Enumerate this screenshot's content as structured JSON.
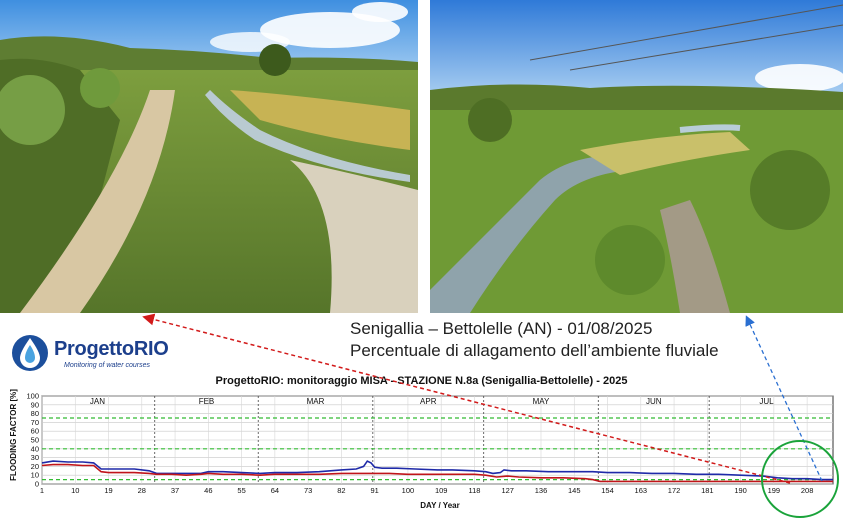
{
  "caption": {
    "line1": "Senigallia – Bettolelle (AN) - 01/08/2025",
    "line2": "Percentuale di allagamento dell’ambiente fluviale"
  },
  "logo": {
    "name": "ProgettoRIO",
    "tagline": "Monitoring of water courses"
  },
  "colors": {
    "blue_series": "#1f2aa8",
    "red_series": "#c0151a",
    "threshold_lines": "#33bb33",
    "highlight_circle": "#1aa33a",
    "arrow_red": "#d21a1a",
    "arrow_blue": "#2a6fd1"
  },
  "chart_data": {
    "type": "line",
    "title": "ProgettoRIO: monitoraggio MISA - STAZIONE N.8a (Senigallia-Bettolelle) - 2025",
    "xlabel": "DAY / Year",
    "ylabel": "FLOODING FACTOR [%]",
    "xlim": [
      1,
      215
    ],
    "ylim": [
      0,
      100
    ],
    "x_ticks": [
      1,
      10,
      19,
      28,
      37,
      46,
      55,
      64,
      73,
      82,
      91,
      100,
      109,
      118,
      127,
      136,
      145,
      154,
      163,
      172,
      181,
      190,
      199,
      208
    ],
    "y_ticks": [
      0,
      10,
      20,
      30,
      40,
      50,
      60,
      70,
      80,
      90,
      100
    ],
    "months": [
      {
        "label": "JAN",
        "start": 1,
        "end": 31
      },
      {
        "label": "FEB",
        "start": 32,
        "end": 59
      },
      {
        "label": "MAR",
        "start": 60,
        "end": 90
      },
      {
        "label": "APR",
        "start": 91,
        "end": 120
      },
      {
        "label": "MAY",
        "start": 121,
        "end": 151
      },
      {
        "label": "JUN",
        "start": 152,
        "end": 181
      },
      {
        "label": "JUL",
        "start": 182,
        "end": 212
      }
    ],
    "thresholds": [
      5,
      40,
      75
    ],
    "series": [
      {
        "color": "#1f2aa8",
        "x": [
          1,
          4,
          8,
          12,
          15,
          17,
          19,
          22,
          26,
          30,
          32,
          36,
          40,
          44,
          46,
          50,
          55,
          60,
          64,
          70,
          76,
          82,
          86,
          88,
          89,
          90,
          91,
          93,
          97,
          102,
          108,
          112,
          118,
          121,
          123,
          125,
          126,
          128,
          132,
          138,
          145,
          150,
          154,
          160,
          166,
          172,
          178,
          184,
          190,
          196,
          200,
          204,
          208,
          212,
          215
        ],
        "y": [
          24,
          26,
          25,
          25,
          24,
          17,
          17,
          17,
          17,
          15,
          12,
          12,
          12,
          12,
          14,
          14,
          13,
          12,
          13,
          13,
          14,
          16,
          17,
          20,
          26,
          24,
          19,
          18,
          18,
          17,
          16,
          16,
          15,
          14,
          12,
          13,
          16,
          15,
          15,
          14,
          14,
          14,
          13,
          13,
          12,
          12,
          11,
          11,
          10,
          9,
          7,
          6,
          6,
          5,
          5
        ]
      },
      {
        "color": "#c0151a",
        "x": [
          1,
          4,
          8,
          12,
          15,
          17,
          19,
          22,
          26,
          30,
          32,
          36,
          40,
          44,
          46,
          50,
          55,
          60,
          64,
          70,
          76,
          82,
          86,
          90,
          95,
          100,
          106,
          112,
          118,
          121,
          124,
          127,
          130,
          136,
          142,
          148,
          150,
          152,
          156,
          162,
          170,
          178,
          186,
          194,
          200,
          205,
          210,
          215
        ],
        "y": [
          21,
          22,
          22,
          21,
          21,
          14,
          13,
          13,
          13,
          12,
          11,
          11,
          10,
          11,
          12,
          11,
          11,
          10,
          11,
          11,
          11,
          12,
          12,
          12,
          12,
          11,
          11,
          11,
          11,
          10,
          8,
          9,
          8,
          7,
          7,
          6,
          5,
          3,
          3,
          3,
          3,
          3,
          3,
          3,
          3,
          3,
          3,
          3
        ]
      }
    ]
  }
}
